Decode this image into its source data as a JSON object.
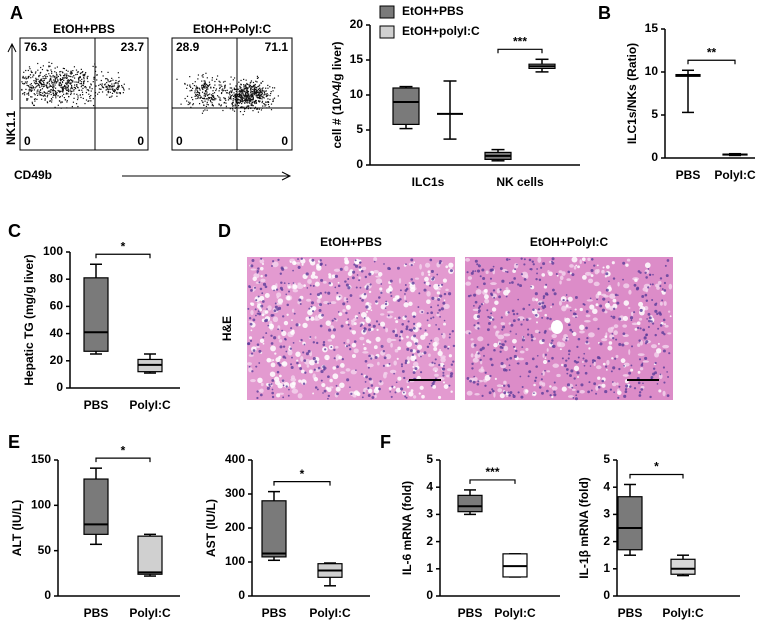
{
  "chart_data": [
    {
      "type": "flow",
      "panel": "A",
      "title": "EtOH+PBS",
      "ylabel": "NK1.1",
      "xlabel": "CD49b",
      "quadrants": [
        76.3,
        23.7,
        0,
        0
      ]
    },
    {
      "type": "flow",
      "title": "EtOH+PolyI:C",
      "quadrants": [
        28.9,
        71.1,
        0,
        0
      ]
    },
    {
      "type": "box",
      "ylabel": "cell # (10^4/g liver)",
      "categories": [
        "ILC1s",
        "NK cells"
      ],
      "ylim": [
        0,
        20
      ],
      "yticks": [
        0,
        5,
        10,
        15,
        20
      ],
      "series": [
        {
          "name": "EtOH+PBS",
          "color": "#7a7a7a",
          "values": [
            {
              "min": 5.2,
              "q1": 5.8,
              "median": 9,
              "q3": 11,
              "max": 11.2
            },
            {
              "min": 0.6,
              "q1": 0.8,
              "median": 1.3,
              "q3": 1.8,
              "max": 2.2
            }
          ]
        },
        {
          "name": "EtOH+polyI:C",
          "color": "#d0d0d0",
          "values": [
            {
              "min": 3.7,
              "q1": 7.3,
              "median": 7.3,
              "q3": 7.3,
              "max": 12
            },
            {
              "min": 13.3,
              "q1": 13.8,
              "median": 14.1,
              "q3": 14.4,
              "max": 15.1
            }
          ]
        }
      ],
      "significance": [
        null,
        "***"
      ]
    },
    {
      "type": "box",
      "panel": "B",
      "ylabel": "ILC1s/NKs (Ratio)",
      "categories": [
        "PBS",
        "PolyI:C"
      ],
      "ylim": [
        0,
        15
      ],
      "yticks": [
        0,
        5,
        10,
        15
      ],
      "colors": [
        "#7a7a7a",
        "#d0d0d0"
      ],
      "values": [
        {
          "min": 5.3,
          "q1": 9.5,
          "median": 9.6,
          "q3": 9.7,
          "max": 10.2
        },
        {
          "min": 0.3,
          "q1": 0.35,
          "median": 0.4,
          "q3": 0.45,
          "max": 0.5
        }
      ],
      "significance": "**"
    },
    {
      "type": "box",
      "panel": "C",
      "ylabel": "Hepatic TG (mg/g liver)",
      "categories": [
        "PBS",
        "PolyI:C"
      ],
      "ylim": [
        0,
        100
      ],
      "yticks": [
        0,
        20,
        40,
        60,
        80,
        100
      ],
      "colors": [
        "#7a7a7a",
        "#d0d0d0"
      ],
      "values": [
        {
          "min": 25,
          "q1": 27,
          "median": 41,
          "q3": 81,
          "max": 91
        },
        {
          "min": 11,
          "q1": 12,
          "median": 17,
          "q3": 21,
          "max": 25
        }
      ],
      "significance": "*"
    },
    {
      "type": "image",
      "panel": "D",
      "ylabel": "H&E",
      "titles": [
        "EtOH+PBS",
        "EtOH+PolyI:C"
      ]
    },
    {
      "type": "box",
      "panel": "E",
      "ylabel": "ALT (IU/L)",
      "categories": [
        "PBS",
        "PolyI:C"
      ],
      "ylim": [
        0,
        150
      ],
      "yticks": [
        0,
        50,
        100,
        150
      ],
      "colors": [
        "#7a7a7a",
        "#d0d0d0"
      ],
      "values": [
        {
          "min": 57,
          "q1": 68,
          "median": 79,
          "q3": 129,
          "max": 141
        },
        {
          "min": 22,
          "q1": 24,
          "median": 26,
          "q3": 66,
          "max": 68
        }
      ],
      "significance": "*"
    },
    {
      "type": "box",
      "ylabel": "AST (IU/L)",
      "categories": [
        "PBS",
        "PolyI:C"
      ],
      "ylim": [
        0,
        400
      ],
      "yticks": [
        0,
        100,
        200,
        300,
        400
      ],
      "colors": [
        "#7a7a7a",
        "#d0d0d0"
      ],
      "values": [
        {
          "min": 105,
          "q1": 115,
          "median": 125,
          "q3": 280,
          "max": 307
        },
        {
          "min": 30,
          "q1": 55,
          "median": 75,
          "q3": 95,
          "max": 97
        }
      ],
      "significance": "*"
    },
    {
      "type": "box",
      "panel": "F",
      "ylabel": "IL-6 mRNA (fold)",
      "categories": [
        "PBS",
        "PolyI:C"
      ],
      "ylim": [
        0,
        5
      ],
      "yticks": [
        0,
        1,
        2,
        3,
        4,
        5
      ],
      "colors": [
        "#7a7a7a",
        "#ffffff"
      ],
      "values": [
        {
          "min": 3.0,
          "q1": 3.1,
          "median": 3.3,
          "q3": 3.7,
          "max": 3.9
        },
        {
          "min": 0.7,
          "q1": 0.7,
          "median": 1.1,
          "q3": 1.55,
          "max": 1.55
        }
      ],
      "significance": "***"
    },
    {
      "type": "box",
      "ylabel": "IL-1β mRNA (fold)",
      "categories": [
        "PBS",
        "PolyI:C"
      ],
      "ylim": [
        0,
        5
      ],
      "yticks": [
        0,
        1,
        2,
        3,
        4,
        5
      ],
      "colors": [
        "#7a7a7a",
        "#d8d8d8"
      ],
      "values": [
        {
          "min": 1.5,
          "q1": 1.7,
          "median": 2.5,
          "q3": 3.65,
          "max": 4.1
        },
        {
          "min": 0.75,
          "q1": 0.8,
          "median": 1.0,
          "q3": 1.35,
          "max": 1.5
        }
      ],
      "significance": "*"
    }
  ]
}
